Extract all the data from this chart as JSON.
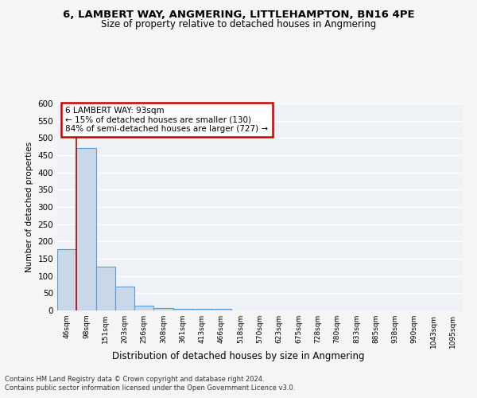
{
  "title": "6, LAMBERT WAY, ANGMERING, LITTLEHAMPTON, BN16 4PE",
  "subtitle": "Size of property relative to detached houses in Angmering",
  "xlabel": "Distribution of detached houses by size in Angmering",
  "ylabel": "Number of detached properties",
  "bin_labels": [
    "46sqm",
    "98sqm",
    "151sqm",
    "203sqm",
    "256sqm",
    "308sqm",
    "361sqm",
    "413sqm",
    "466sqm",
    "518sqm",
    "570sqm",
    "623sqm",
    "675sqm",
    "728sqm",
    "780sqm",
    "833sqm",
    "885sqm",
    "938sqm",
    "990sqm",
    "1043sqm",
    "1095sqm"
  ],
  "bar_heights": [
    178,
    470,
    128,
    70,
    15,
    8,
    5,
    4,
    4,
    0,
    0,
    0,
    0,
    0,
    0,
    0,
    0,
    0,
    0,
    0,
    0
  ],
  "bar_color": "#c8d8e8",
  "bar_edge_color": "#5b9bd5",
  "property_line_x": 0.5,
  "annotation_text_line1": "6 LAMBERT WAY: 93sqm",
  "annotation_text_line2": "← 15% of detached houses are smaller (130)",
  "annotation_text_line3": "84% of semi-detached houses are larger (727) →",
  "annotation_box_color": "#ffffff",
  "annotation_box_edge_color": "#cc0000",
  "property_line_color": "#cc0000",
  "ylim": [
    0,
    600
  ],
  "yticks": [
    0,
    50,
    100,
    150,
    200,
    250,
    300,
    350,
    400,
    450,
    500,
    550,
    600
  ],
  "background_color": "#eef2f7",
  "grid_color": "#ffffff",
  "fig_bg_color": "#f5f5f5",
  "footer_line1": "Contains HM Land Registry data © Crown copyright and database right 2024.",
  "footer_line2": "Contains public sector information licensed under the Open Government Licence v3.0."
}
